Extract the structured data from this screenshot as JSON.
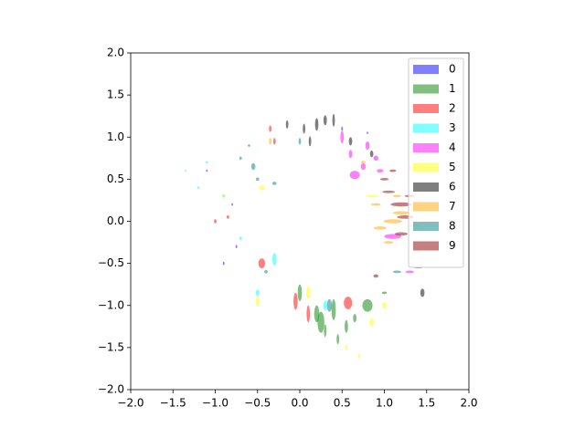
{
  "chart_data": {
    "type": "scatter",
    "alpha": 0.5,
    "legend": "upper right",
    "xlim": [
      -2,
      2
    ],
    "ylim": [
      -2,
      2
    ],
    "xticks": [
      {
        "value": -2,
        "label": "−2.0"
      },
      {
        "value": -1.5,
        "label": "−1.5"
      },
      {
        "value": -1,
        "label": "−1.0"
      },
      {
        "value": -0.5,
        "label": "−0.5"
      },
      {
        "value": 0,
        "label": "0.0"
      },
      {
        "value": 0.5,
        "label": "0.5"
      },
      {
        "value": 1,
        "label": "1.0"
      },
      {
        "value": 1.5,
        "label": "1.5"
      },
      {
        "value": 2,
        "label": "2.0"
      }
    ],
    "yticks": [
      {
        "value": -2,
        "label": "−2.0"
      },
      {
        "value": -1.5,
        "label": "−1.5"
      },
      {
        "value": -1,
        "label": "−1.0"
      },
      {
        "value": -0.5,
        "label": "−0.5"
      },
      {
        "value": 0,
        "label": "0.0"
      },
      {
        "value": 0.5,
        "label": "0.5"
      },
      {
        "value": 1,
        "label": "1.0"
      },
      {
        "value": 1.5,
        "label": "1.5"
      },
      {
        "value": 2,
        "label": "2.0"
      }
    ],
    "series": [
      {
        "name": "0",
        "color": "#0000ff",
        "x": [
          -0.9,
          -0.8,
          0.5,
          -1.1,
          -0.75,
          0.8
        ],
        "values": [
          -0.5,
          0.2,
          1.1,
          0.6,
          -0.3,
          1.05
        ],
        "widths": [
          0.02,
          0.02,
          0.02,
          0.02,
          0.02,
          0.02
        ],
        "heights": [
          0.04,
          0.03,
          0.05,
          0.03,
          0.04,
          0.03
        ]
      },
      {
        "name": "1",
        "color": "#008000",
        "x": [
          0.0,
          0.2,
          0.4,
          0.55,
          0.8,
          0.3,
          0.45,
          1.0,
          0.25,
          0.65
        ],
        "values": [
          -0.85,
          -1.1,
          -1.05,
          -1.25,
          -1.0,
          -1.3,
          -1.4,
          -0.85,
          -1.2,
          -1.15
        ],
        "widths": [
          0.05,
          0.06,
          0.05,
          0.04,
          0.12,
          0.03,
          0.03,
          0.06,
          0.08,
          0.04
        ],
        "heights": [
          0.2,
          0.2,
          0.25,
          0.15,
          0.15,
          0.15,
          0.12,
          0.03,
          0.25,
          0.1
        ]
      },
      {
        "name": "2",
        "color": "#ff0000",
        "x": [
          -0.45,
          0.57,
          -0.05,
          -0.85,
          0.1,
          -0.35,
          -1.0,
          -0.3
        ],
        "values": [
          -0.5,
          -0.97,
          -0.95,
          0.05,
          -1.1,
          1.1,
          0.0,
          0.95
        ],
        "widths": [
          0.08,
          0.1,
          0.05,
          0.03,
          0.04,
          0.03,
          0.03,
          0.03
        ],
        "heights": [
          0.12,
          0.15,
          0.2,
          0.04,
          0.2,
          0.08,
          0.05,
          0.08
        ]
      },
      {
        "name": "3",
        "color": "#00ffff",
        "x": [
          -0.3,
          -1.1,
          -1.2,
          -0.9,
          -0.5,
          0.3,
          -0.7,
          -1.35
        ],
        "values": [
          -0.45,
          0.7,
          0.4,
          0.3,
          -0.85,
          -1.0,
          -0.2,
          0.6
        ],
        "widths": [
          0.05,
          0.03,
          0.03,
          0.04,
          0.04,
          0.04,
          0.03,
          0.02
        ],
        "heights": [
          0.15,
          0.03,
          0.03,
          0.04,
          0.08,
          0.12,
          0.04,
          0.03
        ]
      },
      {
        "name": "4",
        "color": "#ff00ff",
        "x": [
          0.65,
          0.75,
          0.8,
          0.9,
          1.1,
          0.5,
          1.3,
          0.6,
          0.95
        ],
        "values": [
          0.55,
          0.65,
          0.9,
          0.75,
          -0.18,
          1.0,
          -0.6,
          0.8,
          0.6
        ],
        "widths": [
          0.12,
          0.06,
          0.05,
          0.06,
          0.2,
          0.04,
          0.1,
          0.04,
          0.08
        ],
        "heights": [
          0.1,
          0.08,
          0.1,
          0.06,
          0.06,
          0.15,
          0.03,
          0.1,
          0.04
        ]
      },
      {
        "name": "5",
        "color": "#ffff00",
        "x": [
          -0.45,
          0.85,
          0.85,
          1.0,
          -0.5,
          0.55,
          0.7,
          -0.9,
          0.1
        ],
        "values": [
          0.4,
          0.3,
          -1.2,
          -1.0,
          -0.95,
          -1.5,
          -1.6,
          0.3,
          -0.85
        ],
        "widths": [
          0.06,
          0.15,
          0.05,
          0.05,
          0.04,
          0.03,
          0.03,
          0.04,
          0.05
        ],
        "heights": [
          0.06,
          0.03,
          0.1,
          0.08,
          0.12,
          0.06,
          0.05,
          0.03,
          0.15
        ]
      },
      {
        "name": "6",
        "color": "#000000",
        "x": [
          0.2,
          0.05,
          0.3,
          0.4,
          0.6,
          1.45,
          -0.15,
          0.85,
          0.12
        ],
        "values": [
          1.15,
          1.1,
          1.2,
          1.2,
          0.95,
          -0.85,
          1.15,
          0.8,
          0.95
        ],
        "widths": [
          0.04,
          0.03,
          0.04,
          0.03,
          0.04,
          0.05,
          0.03,
          0.04,
          0.03
        ],
        "heights": [
          0.15,
          0.12,
          0.12,
          0.15,
          0.1,
          0.1,
          0.1,
          0.08,
          0.12
        ]
      },
      {
        "name": "7",
        "color": "#ffa500",
        "x": [
          1.1,
          0.95,
          1.2,
          0.9,
          1.35,
          1.15,
          -0.35,
          0.75,
          1.05
        ],
        "values": [
          0.0,
          -0.08,
          0.1,
          0.2,
          -0.05,
          0.3,
          0.95,
          0.7,
          -0.25
        ],
        "widths": [
          0.22,
          0.15,
          0.2,
          0.12,
          0.15,
          0.1,
          0.03,
          0.05,
          0.12
        ],
        "heights": [
          0.05,
          0.04,
          0.04,
          0.03,
          0.03,
          0.03,
          0.08,
          0.04,
          0.03
        ]
      },
      {
        "name": "8",
        "color": "#008080",
        "x": [
          -0.5,
          -0.55,
          -0.3,
          0.35,
          1.15,
          -0.7,
          -0.6,
          0.0,
          -0.4
        ],
        "values": [
          0.5,
          0.65,
          0.45,
          -1.0,
          -0.6,
          0.75,
          0.9,
          0.95,
          -0.6
        ],
        "widths": [
          0.04,
          0.05,
          0.05,
          0.06,
          0.1,
          0.03,
          0.03,
          0.03,
          0.04
        ],
        "heights": [
          0.04,
          0.08,
          0.04,
          0.15,
          0.03,
          0.04,
          0.03,
          0.08,
          0.04
        ]
      },
      {
        "name": "9",
        "color": "#8b0000",
        "x": [
          1.2,
          1.25,
          1.2,
          1.0,
          1.3,
          0.9,
          1.1,
          1.4,
          1.05
        ],
        "values": [
          0.2,
          0.05,
          -0.15,
          0.5,
          0.3,
          -0.65,
          0.6,
          -0.55,
          0.35
        ],
        "widths": [
          0.25,
          0.2,
          0.15,
          0.1,
          0.12,
          0.06,
          0.08,
          0.1,
          0.15
        ],
        "heights": [
          0.05,
          0.04,
          0.04,
          0.03,
          0.03,
          0.04,
          0.03,
          0.02,
          0.03
        ]
      }
    ]
  }
}
